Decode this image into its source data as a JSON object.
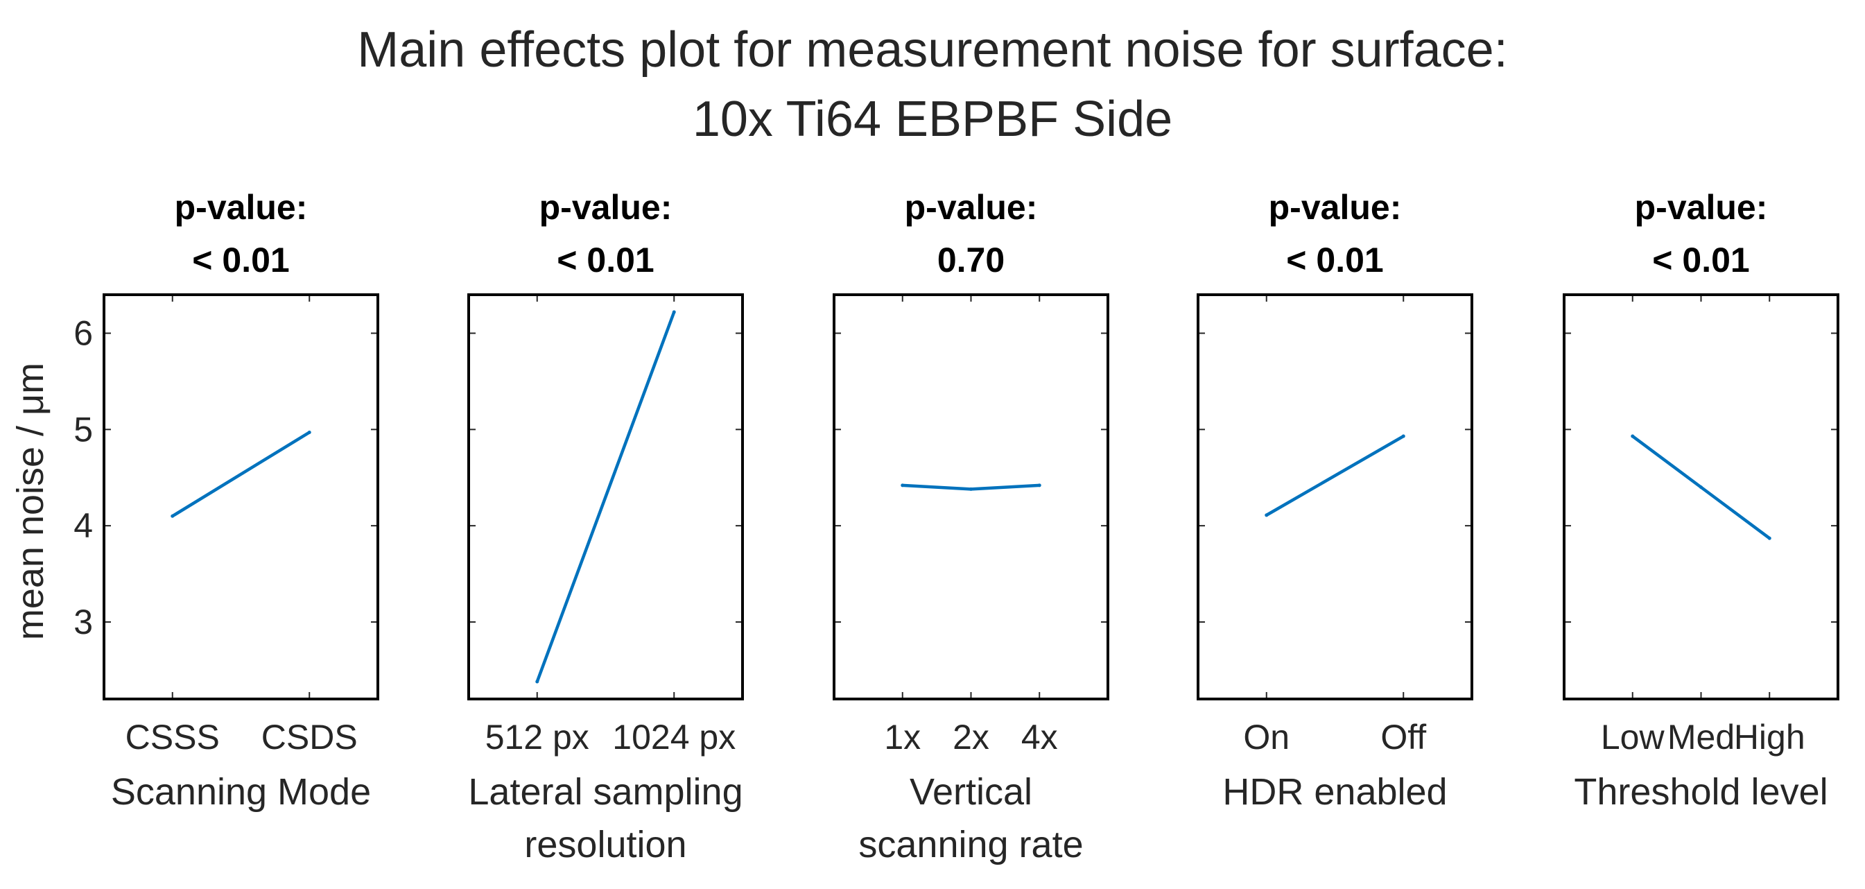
{
  "chart_data": {
    "type": "line",
    "title": [
      "Main effects plot for measurement noise for surface:",
      "10x Ti64 EBPBF Side"
    ],
    "ylabel": "mean noise / μm",
    "ylim": [
      2.2,
      6.4
    ],
    "yticks": [
      3,
      4,
      5,
      6
    ],
    "series_color": "#0072BD",
    "panels": [
      {
        "pvalue_label": "p-value:",
        "pvalue": "< 0.01",
        "xlabel": [
          "Scanning Mode"
        ],
        "categories": [
          "CSSS",
          "CSDS"
        ],
        "values": [
          4.1,
          4.97
        ]
      },
      {
        "pvalue_label": "p-value:",
        "pvalue": "< 0.01",
        "xlabel": [
          "Lateral sampling",
          "resolution"
        ],
        "categories": [
          "512 px",
          "1024 px"
        ],
        "values": [
          2.38,
          6.22
        ]
      },
      {
        "pvalue_label": "p-value:",
        "pvalue": "0.70",
        "xlabel": [
          "Vertical",
          "scanning rate"
        ],
        "categories": [
          "1x",
          "2x",
          "4x"
        ],
        "values": [
          4.42,
          4.38,
          4.42
        ]
      },
      {
        "pvalue_label": "p-value:",
        "pvalue": "< 0.01",
        "xlabel": [
          "HDR enabled"
        ],
        "categories": [
          "On",
          "Off"
        ],
        "values": [
          4.11,
          4.93
        ]
      },
      {
        "pvalue_label": "p-value:",
        "pvalue": "< 0.01",
        "xlabel": [
          "Threshold level"
        ],
        "categories": [
          "Low",
          "Med",
          "High"
        ],
        "values": [
          4.93,
          4.4,
          3.87
        ]
      }
    ]
  }
}
